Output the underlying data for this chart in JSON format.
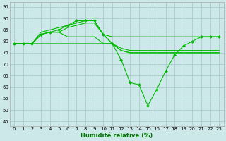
{
  "bg_color": "#cce8e8",
  "grid_color": "#aacccc",
  "line_color": "#00bb00",
  "marker_color": "#00bb00",
  "xlabel": "Humidité relative (%)",
  "xlabel_color": "#007700",
  "xlim": [
    -0.5,
    23.5
  ],
  "ylim": [
    43,
    97
  ],
  "yticks": [
    45,
    50,
    55,
    60,
    65,
    70,
    75,
    80,
    85,
    90,
    95
  ],
  "xticks": [
    0,
    1,
    2,
    3,
    4,
    5,
    6,
    7,
    8,
    9,
    10,
    11,
    12,
    13,
    14,
    15,
    16,
    17,
    18,
    19,
    20,
    21,
    22,
    23
  ],
  "series": [
    {
      "y": [
        79,
        79,
        79,
        83,
        84,
        84,
        86,
        87,
        88,
        88,
        83,
        82,
        82,
        82,
        82,
        82,
        82,
        82,
        82,
        82,
        82,
        82,
        82,
        82
      ],
      "marker": false
    },
    {
      "y": [
        79,
        79,
        79,
        84,
        85,
        86,
        87,
        88,
        89,
        89,
        83,
        79,
        76,
        75,
        75,
        75,
        75,
        75,
        75,
        75,
        75,
        75,
        75,
        75
      ],
      "marker": false
    },
    {
      "y": [
        79,
        79,
        79,
        83,
        84,
        84,
        82,
        82,
        82,
        82,
        79,
        79,
        77,
        76,
        76,
        76,
        76,
        76,
        76,
        76,
        76,
        76,
        76,
        76
      ],
      "marker": false
    },
    {
      "y": [
        79,
        79,
        79,
        79,
        79,
        79,
        79,
        79,
        79,
        79,
        79,
        79,
        76,
        75,
        75,
        75,
        75,
        75,
        75,
        75,
        75,
        75,
        75,
        75
      ],
      "marker": false
    },
    {
      "y": [
        79,
        79,
        79,
        83,
        84,
        85,
        87,
        89,
        89,
        89,
        83,
        79,
        72,
        62,
        61,
        52,
        59,
        67,
        74,
        78,
        80,
        82,
        82,
        82
      ],
      "marker": true
    }
  ]
}
